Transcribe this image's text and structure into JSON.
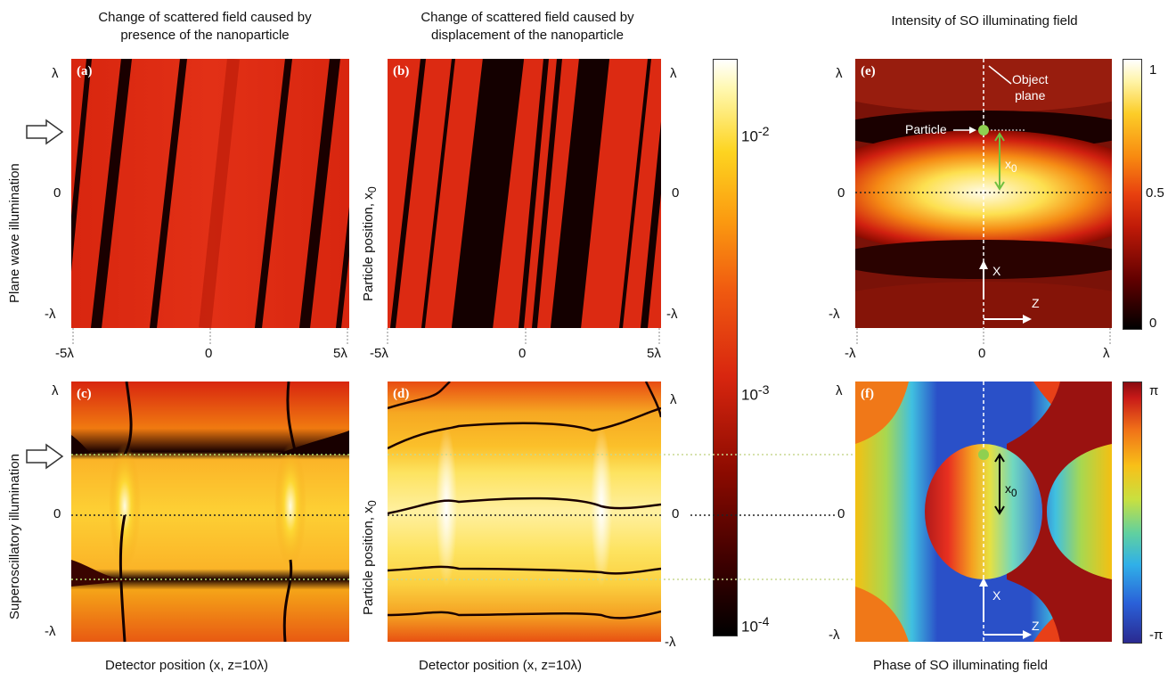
{
  "figure": {
    "titles": {
      "a": "Change of scattered field caused by presence of the nanoparticle",
      "b": "Change of scattered field caused by displacement of the nanoparticle",
      "e": "Intensity of SO illuminating field"
    },
    "row_labels": {
      "top": "Plane wave illumination",
      "bottom": "Superoscillatory illumination"
    },
    "panel_labels": [
      "(a)",
      "(b)",
      "(c)",
      "(d)",
      "(e)",
      "(f)"
    ],
    "axis": {
      "particle_position": "Particle position, x",
      "particle_position_sub": "0",
      "detector_position": "Detector position (x, z=10λ)",
      "y_ticks": [
        "λ",
        "0",
        "-λ"
      ],
      "x_ticks_ab": [
        "-5λ",
        "0",
        "5λ"
      ],
      "x_ticks_e": [
        "-λ",
        "0",
        "λ"
      ]
    },
    "colorbar_log": {
      "ticks": [
        {
          "base": "10",
          "exp": "-2"
        },
        {
          "base": "10",
          "exp": "-3"
        },
        {
          "base": "10",
          "exp": "-4"
        }
      ]
    },
    "colorbar_intensity": {
      "ticks": [
        "1",
        "0.5",
        "0"
      ]
    },
    "colorbar_phase": {
      "ticks": [
        "π",
        "-π"
      ]
    },
    "annotations": {
      "object_plane_1": "Object",
      "object_plane_2": "plane",
      "particle": "Particle",
      "x0": "x",
      "x0_sub": "0",
      "x_axis": "X",
      "z_axis": "Z"
    },
    "caption_f": "Phase of SO illuminating field"
  }
}
